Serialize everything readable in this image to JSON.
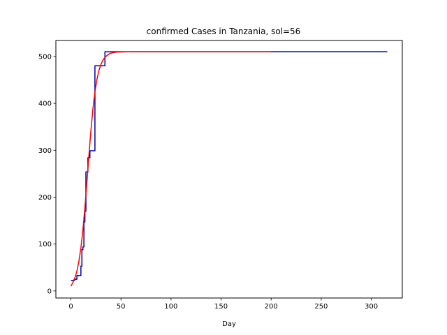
{
  "chart_data": {
    "type": "line",
    "title": "confirmed Cases in Tanzania, sol=56",
    "xlabel": "Day",
    "ylabel": "",
    "xlim": [
      -15,
      331
    ],
    "ylim": [
      -15,
      534
    ],
    "xticks": [
      0,
      50,
      100,
      150,
      200,
      250,
      300
    ],
    "yticks": [
      0,
      100,
      200,
      300,
      400,
      500
    ],
    "grid": false,
    "legend": "none",
    "series": [
      {
        "style": "step",
        "color": "#0000aa",
        "x": [
          0,
          2,
          4,
          6,
          8,
          10,
          11,
          12,
          13,
          14,
          15,
          16,
          17,
          18,
          19,
          21,
          24,
          25,
          30,
          33,
          34,
          40,
          60,
          100,
          200,
          300,
          316
        ],
        "y": [
          22,
          23,
          25,
          33,
          33,
          53,
          88,
          94,
          147,
          170,
          254,
          254,
          284,
          284,
          299,
          299,
          480,
          480,
          480,
          480,
          510,
          510,
          510,
          510,
          510,
          510,
          510
        ]
      },
      {
        "style": "line",
        "color": "#ff0000",
        "x": [
          0,
          2,
          4,
          6,
          8,
          10,
          12,
          14,
          16,
          18,
          20,
          22,
          24,
          26,
          28,
          30,
          32,
          34,
          36,
          38,
          40,
          45,
          50,
          60,
          80,
          100,
          150,
          200
        ],
        "y": [
          10,
          18,
          28,
          42,
          63,
          92,
          130,
          178,
          232,
          289,
          342,
          388,
          424,
          451,
          470,
          483,
          492,
          498,
          502,
          505,
          507,
          509,
          509.5,
          510,
          510,
          510,
          510,
          510
        ]
      }
    ]
  }
}
